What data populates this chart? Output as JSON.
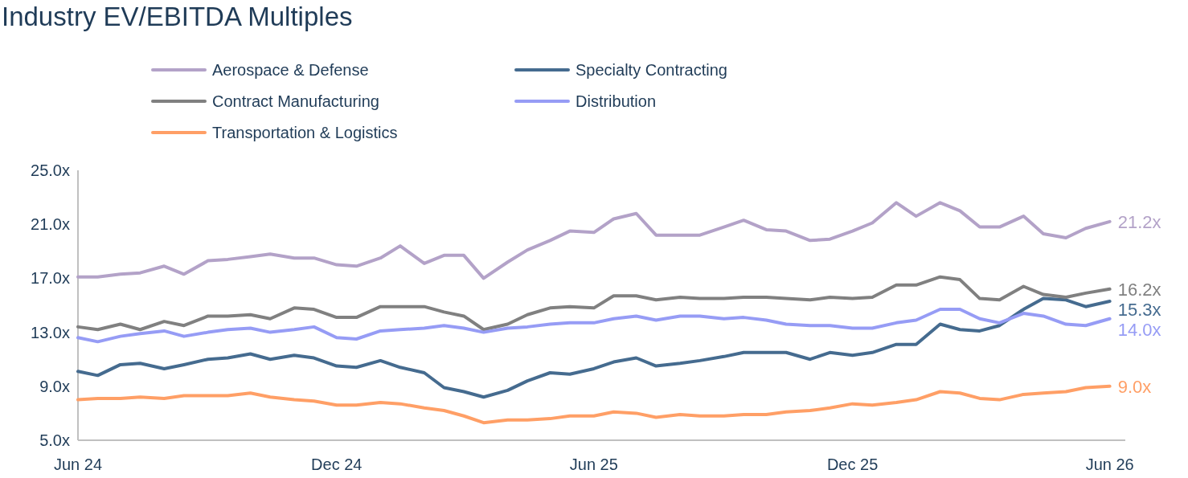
{
  "chart_data": {
    "type": "line",
    "title": "Industry EV/EBITDA Multiples",
    "x": [
      "2024-06-01",
      "2024-06-15",
      "2024-07-01",
      "2024-07-15",
      "2024-08-01",
      "2024-08-15",
      "2024-09-01",
      "2024-09-15",
      "2024-10-01",
      "2024-10-15",
      "2024-11-01",
      "2024-11-15",
      "2024-12-01",
      "2024-12-15",
      "2025-01-01",
      "2025-01-15",
      "2025-02-01",
      "2025-02-15",
      "2025-03-01",
      "2025-03-15",
      "2025-04-01",
      "2025-04-15",
      "2025-05-01",
      "2025-05-15",
      "2025-06-01",
      "2025-06-15",
      "2025-07-01",
      "2025-07-15",
      "2025-08-01",
      "2025-08-15",
      "2025-09-01",
      "2025-09-15",
      "2025-10-01",
      "2025-10-15",
      "2025-11-01",
      "2025-11-15",
      "2025-12-01",
      "2025-12-15",
      "2026-01-01",
      "2026-01-15",
      "2026-02-01",
      "2026-02-15",
      "2026-03-01",
      "2026-03-15",
      "2026-04-01",
      "2026-04-15",
      "2026-05-01",
      "2026-05-15",
      "2026-06-01"
    ],
    "series": [
      {
        "name": "Aerospace & Defense",
        "color": "#b3a2c8",
        "values": [
          17.1,
          17.1,
          17.3,
          17.4,
          17.9,
          17.3,
          18.3,
          18.4,
          18.6,
          18.8,
          18.5,
          18.5,
          18.0,
          17.9,
          18.5,
          19.4,
          18.1,
          18.7,
          18.7,
          17.0,
          18.2,
          19.1,
          19.8,
          20.5,
          20.4,
          21.4,
          21.8,
          20.2,
          20.2,
          20.2,
          20.8,
          21.3,
          20.6,
          20.5,
          19.8,
          19.9,
          20.5,
          21.1,
          22.6,
          21.6,
          22.6,
          22.0,
          20.8,
          20.8,
          21.6,
          20.3,
          20.0,
          20.7,
          21.2
        ],
        "value_labels": [
          null,
          null,
          null,
          null,
          null,
          null,
          null,
          null,
          null,
          null,
          null,
          null,
          null,
          null,
          null,
          null,
          null,
          null,
          null,
          null,
          null,
          null,
          null,
          null,
          null,
          null,
          null,
          null,
          null,
          null,
          null,
          null,
          null,
          null,
          null,
          null,
          null,
          null,
          null,
          null,
          null,
          null,
          null,
          null,
          null,
          null,
          null,
          null,
          "21.2x"
        ]
      },
      {
        "name": "Specialty Contracting",
        "color": "#456b8f",
        "values": [
          10.1,
          9.8,
          10.6,
          10.7,
          10.3,
          10.6,
          11.0,
          11.1,
          11.4,
          11.0,
          11.3,
          11.1,
          10.5,
          10.4,
          10.9,
          10.4,
          10.0,
          8.9,
          8.6,
          8.2,
          8.7,
          9.4,
          10.0,
          9.9,
          10.3,
          10.8,
          11.1,
          10.5,
          10.7,
          10.9,
          11.2,
          11.5,
          11.5,
          11.5,
          11.0,
          11.5,
          11.3,
          11.5,
          12.1,
          12.1,
          13.6,
          13.2,
          13.1,
          13.5,
          14.7,
          15.5,
          15.4,
          14.9,
          15.3
        ],
        "value_labels": [
          null,
          null,
          null,
          null,
          null,
          null,
          null,
          null,
          null,
          null,
          null,
          null,
          null,
          null,
          null,
          null,
          null,
          null,
          null,
          null,
          null,
          null,
          null,
          null,
          null,
          null,
          null,
          null,
          null,
          null,
          null,
          null,
          null,
          null,
          null,
          null,
          null,
          null,
          null,
          null,
          null,
          null,
          null,
          null,
          null,
          null,
          null,
          null,
          "15.3x"
        ]
      },
      {
        "name": "Contract Manufacturing",
        "color": "#808080",
        "values": [
          13.4,
          13.2,
          13.6,
          13.2,
          13.8,
          13.5,
          14.2,
          14.2,
          14.3,
          14.0,
          14.8,
          14.7,
          14.1,
          14.1,
          14.9,
          14.9,
          14.9,
          14.5,
          14.2,
          13.2,
          13.6,
          14.3,
          14.8,
          14.9,
          14.8,
          15.7,
          15.7,
          15.4,
          15.6,
          15.5,
          15.5,
          15.6,
          15.6,
          15.5,
          15.4,
          15.6,
          15.5,
          15.6,
          16.5,
          16.5,
          17.1,
          16.9,
          15.5,
          15.4,
          16.4,
          15.8,
          15.6,
          15.9,
          16.2
        ],
        "value_labels": [
          null,
          null,
          null,
          null,
          null,
          null,
          null,
          null,
          null,
          null,
          null,
          null,
          null,
          null,
          null,
          null,
          null,
          null,
          null,
          null,
          null,
          null,
          null,
          null,
          null,
          null,
          null,
          null,
          null,
          null,
          null,
          null,
          null,
          null,
          null,
          null,
          null,
          null,
          null,
          null,
          null,
          null,
          null,
          null,
          null,
          null,
          null,
          null,
          "16.2x"
        ]
      },
      {
        "name": "Distribution",
        "color": "#969cf5",
        "values": [
          12.6,
          12.3,
          12.7,
          12.9,
          13.1,
          12.7,
          13.0,
          13.2,
          13.3,
          13.0,
          13.2,
          13.4,
          12.6,
          12.5,
          13.1,
          13.2,
          13.3,
          13.5,
          13.3,
          13.0,
          13.3,
          13.4,
          13.6,
          13.7,
          13.7,
          14.0,
          14.2,
          13.9,
          14.2,
          14.2,
          14.0,
          14.1,
          13.9,
          13.6,
          13.5,
          13.5,
          13.3,
          13.3,
          13.7,
          13.9,
          14.7,
          14.7,
          14.0,
          13.7,
          14.4,
          14.2,
          13.6,
          13.5,
          14.0
        ],
        "value_labels": [
          null,
          null,
          null,
          null,
          null,
          null,
          null,
          null,
          null,
          null,
          null,
          null,
          null,
          null,
          null,
          null,
          null,
          null,
          null,
          null,
          null,
          null,
          null,
          null,
          null,
          null,
          null,
          null,
          null,
          null,
          null,
          null,
          null,
          null,
          null,
          null,
          null,
          null,
          null,
          null,
          null,
          null,
          null,
          null,
          null,
          null,
          null,
          null,
          "14.0x"
        ]
      },
      {
        "name": "Transportation & Logistics",
        "color": "#ff9f66",
        "values": [
          8.0,
          8.1,
          8.1,
          8.2,
          8.1,
          8.3,
          8.3,
          8.3,
          8.5,
          8.2,
          8.0,
          7.9,
          7.6,
          7.6,
          7.8,
          7.7,
          7.4,
          7.2,
          6.8,
          6.3,
          6.5,
          6.5,
          6.6,
          6.8,
          6.8,
          7.1,
          7.0,
          6.7,
          6.9,
          6.8,
          6.8,
          6.9,
          6.9,
          7.1,
          7.2,
          7.4,
          7.7,
          7.6,
          7.8,
          8.0,
          8.6,
          8.5,
          8.1,
          8.0,
          8.4,
          8.5,
          8.6,
          8.9,
          9.0
        ],
        "value_labels": [
          null,
          null,
          null,
          null,
          null,
          null,
          null,
          null,
          null,
          null,
          null,
          null,
          null,
          null,
          null,
          null,
          null,
          null,
          null,
          null,
          null,
          null,
          null,
          null,
          null,
          null,
          null,
          null,
          null,
          null,
          null,
          null,
          null,
          null,
          null,
          null,
          null,
          null,
          null,
          null,
          null,
          null,
          null,
          null,
          null,
          null,
          null,
          null,
          "9.0x"
        ]
      }
    ],
    "xlim": [
      "2024-06-01",
      "2026-06-12"
    ],
    "xticks": [
      {
        "value": "2024-06-01",
        "label": "Jun 24"
      },
      {
        "value": "2024-12-01",
        "label": "Dec 24"
      },
      {
        "value": "2025-06-01",
        "label": "Jun 25"
      },
      {
        "value": "2025-12-01",
        "label": "Dec 25"
      },
      {
        "value": "2026-06-01",
        "label": "Jun 26"
      }
    ],
    "ylim": [
      5,
      25
    ],
    "yticks": [
      {
        "value": 5,
        "label": "5.0x"
      },
      {
        "value": 9,
        "label": "9.0x"
      },
      {
        "value": 13,
        "label": "13.0x"
      },
      {
        "value": 17,
        "label": "17.0x"
      },
      {
        "value": 21,
        "label": "21.0x"
      },
      {
        "value": 25,
        "label": "25.0x"
      }
    ],
    "grid": false,
    "legend": "top",
    "marker": "none",
    "line_style": "solid"
  }
}
